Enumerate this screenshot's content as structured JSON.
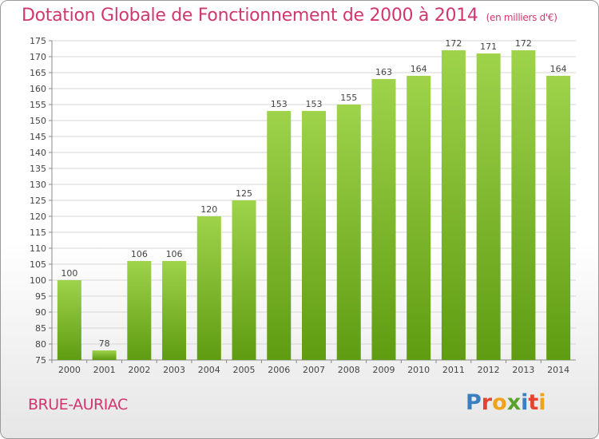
{
  "title": "Dotation Globale de Fonctionnement de 2000 à 2014",
  "unit": "(en milliers d'€)",
  "commune": "BRUE-AURIAC",
  "logo": "Proxiti",
  "colors": {
    "accent": "#d0376f",
    "bar_top": "#9ed34a",
    "bar_bottom": "#5f9c12"
  },
  "chart_data": {
    "type": "bar",
    "categories": [
      "2000",
      "2001",
      "2002",
      "2003",
      "2004",
      "2005",
      "2006",
      "2007",
      "2008",
      "2009",
      "2010",
      "2011",
      "2012",
      "2013",
      "2014"
    ],
    "values": [
      100,
      78,
      106,
      106,
      120,
      125,
      153,
      153,
      155,
      163,
      164,
      172,
      171,
      172,
      164
    ],
    "ylim": [
      75,
      175
    ],
    "ytick_step": 5,
    "grid": true,
    "xlabel": "",
    "ylabel": ""
  }
}
